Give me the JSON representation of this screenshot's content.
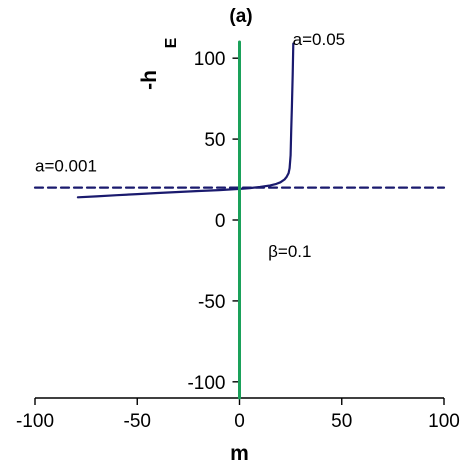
{
  "chart_data": {
    "type": "line",
    "panel_label": "(a)",
    "xlabel": "m",
    "ylabel": "-h",
    "ylabel_subscript": "E",
    "xlim": [
      -100,
      100
    ],
    "ylim": [
      -110,
      110
    ],
    "xticks": [
      -100,
      -50,
      0,
      50,
      100
    ],
    "yticks": [
      -100,
      -50,
      0,
      50,
      100
    ],
    "tick_labels_x": [
      "-100",
      "-50",
      "0",
      "50",
      "100"
    ],
    "tick_labels_y": [
      "-100",
      "-50",
      "0",
      "50",
      "100"
    ],
    "grid": false,
    "series": [
      {
        "label": "a=0.05",
        "style": "solid",
        "color": "#1a1a6e",
        "x": [
          -79,
          -70,
          -60,
          -50,
          -40,
          -30,
          -20,
          -10,
          0,
          5,
          10,
          15,
          18,
          20,
          22,
          23,
          24,
          24.5,
          25,
          25.3,
          25.6,
          26,
          26.3
        ],
        "y": [
          14,
          14.6,
          15.3,
          16,
          16.7,
          17.3,
          17.9,
          18.5,
          19.2,
          19.7,
          20.4,
          21.4,
          22.3,
          23.3,
          25,
          26.5,
          29,
          32,
          40,
          55,
          70,
          90,
          109
        ]
      },
      {
        "label": "a=0.001",
        "style": "dashed",
        "color": "#1a1a6e",
        "x": [
          -100,
          100
        ],
        "y": [
          20,
          20
        ]
      },
      {
        "label": "",
        "style": "solid",
        "color": "#1aa15a",
        "x": [
          0,
          0
        ],
        "y": [
          -110,
          110
        ]
      }
    ],
    "annotations": [
      {
        "text": "a=0.05",
        "x": 26,
        "y": 108
      },
      {
        "text": "a=0.001",
        "x": -100,
        "y": 30
      },
      {
        "text": "β=0.1",
        "x": 14,
        "y": -23
      }
    ]
  }
}
